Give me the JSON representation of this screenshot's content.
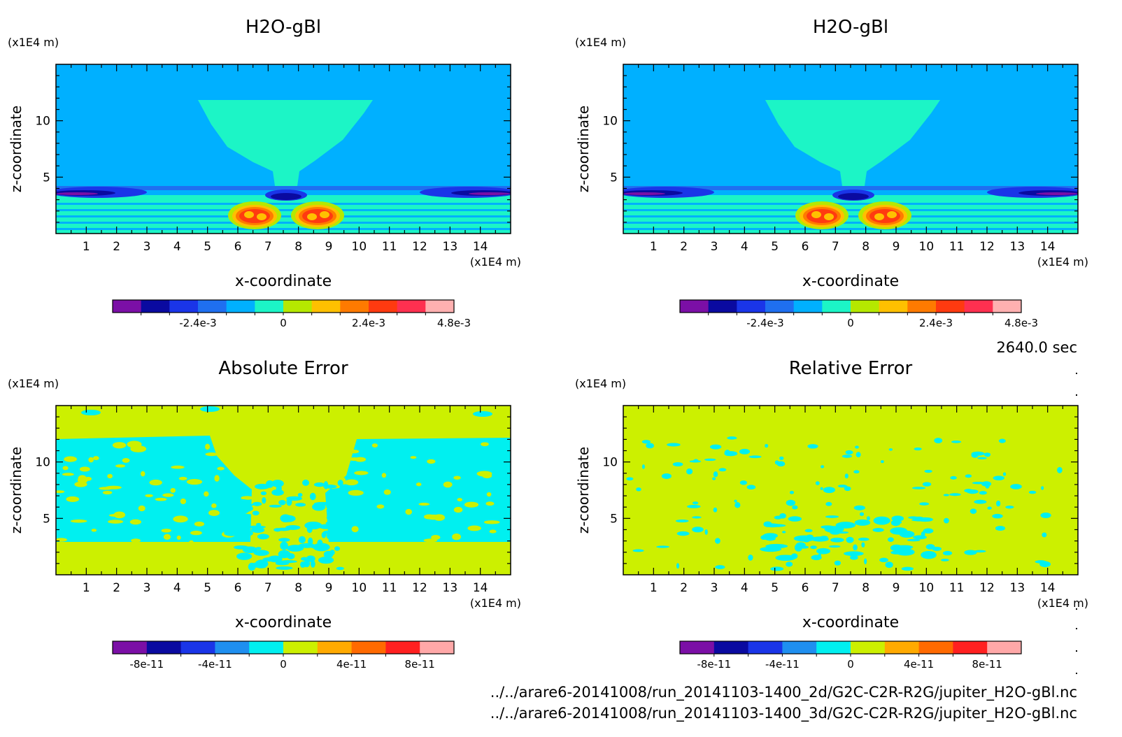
{
  "time_label": "2640.0 sec",
  "files": [
    "../../arare6-20141008/run_20141103-1400_2d/G2C-C2R-R2G/jupiter_H2O-gBl.nc",
    "../../arare6-20141008/run_20141103-1400_3d/G2C-C2R-R2G/jupiter_H2O-gBl.nc"
  ],
  "chart_data": [
    {
      "type": "heatmap",
      "title": "H2O-gBl",
      "xlabel": "x-coordinate",
      "ylabel": "z-coordinate",
      "x_unit": "(x1E4 m)",
      "y_unit": "(x1E4 m)",
      "xlim": [
        0,
        15
      ],
      "ylim": [
        0,
        15
      ],
      "x_ticks": [
        1,
        2,
        3,
        4,
        5,
        6,
        7,
        8,
        9,
        10,
        11,
        12,
        13,
        14
      ],
      "y_ticks": [
        5,
        10
      ],
      "colorbar": {
        "colors": [
          "#7b0fa6",
          "#0a0aa0",
          "#1a35e8",
          "#1f6ff0",
          "#00b0ff",
          "#1cf5c6",
          "#b5e800",
          "#ffc000",
          "#ff7a00",
          "#ff3a10",
          "#ff3050",
          "#ffb0b0"
        ],
        "ticks": [
          "-2.4e-3",
          "0",
          "2.4e-3",
          "4.8e-3"
        ]
      }
    },
    {
      "type": "heatmap",
      "title": "H2O-gBl",
      "xlabel": "x-coordinate",
      "ylabel": "z-coordinate",
      "x_unit": "(x1E4 m)",
      "y_unit": "(x1E4 m)",
      "xlim": [
        0,
        15
      ],
      "ylim": [
        0,
        15
      ],
      "x_ticks": [
        1,
        2,
        3,
        4,
        5,
        6,
        7,
        8,
        9,
        10,
        11,
        12,
        13,
        14
      ],
      "y_ticks": [
        5,
        10
      ],
      "colorbar": {
        "colors": [
          "#7b0fa6",
          "#0a0aa0",
          "#1a35e8",
          "#1f6ff0",
          "#00b0ff",
          "#1cf5c6",
          "#b5e800",
          "#ffc000",
          "#ff7a00",
          "#ff3a10",
          "#ff3050",
          "#ffb0b0"
        ],
        "ticks": [
          "-2.4e-3",
          "0",
          "2.4e-3",
          "4.8e-3"
        ]
      }
    },
    {
      "type": "heatmap",
      "title": "Absolute Error",
      "xlabel": "x-coordinate",
      "ylabel": "z-coordinate",
      "x_unit": "(x1E4 m)",
      "y_unit": "(x1E4 m)",
      "xlim": [
        0,
        15
      ],
      "ylim": [
        0,
        15
      ],
      "x_ticks": [
        1,
        2,
        3,
        4,
        5,
        6,
        7,
        8,
        9,
        10,
        11,
        12,
        13,
        14
      ],
      "y_ticks": [
        5,
        10
      ],
      "colorbar": {
        "colors": [
          "#7b0fa6",
          "#0a0aa0",
          "#1a35e8",
          "#1f8ff0",
          "#00f0f0",
          "#ccf000",
          "#ffaa00",
          "#ff6a00",
          "#ff2020",
          "#ffa8a8"
        ],
        "ticks": [
          "-8e-11",
          "-4e-11",
          "0",
          "4e-11",
          "8e-11"
        ]
      }
    },
    {
      "type": "heatmap",
      "title": "Relative Error",
      "xlabel": "x-coordinate",
      "ylabel": "z-coordinate",
      "x_unit": "(x1E4 m)",
      "y_unit": "(x1E4 m)",
      "xlim": [
        0,
        15
      ],
      "ylim": [
        0,
        15
      ],
      "x_ticks": [
        1,
        2,
        3,
        4,
        5,
        6,
        7,
        8,
        9,
        10,
        11,
        12,
        13,
        14
      ],
      "y_ticks": [
        5,
        10
      ],
      "colorbar": {
        "colors": [
          "#7b0fa6",
          "#0a0aa0",
          "#1a35e8",
          "#1f8ff0",
          "#00f0f0",
          "#ccf000",
          "#ffaa00",
          "#ff6a00",
          "#ff2020",
          "#ffa8a8"
        ],
        "ticks": [
          "-8e-11",
          "-4e-11",
          "0",
          "4e-11",
          "8e-11"
        ]
      }
    }
  ]
}
